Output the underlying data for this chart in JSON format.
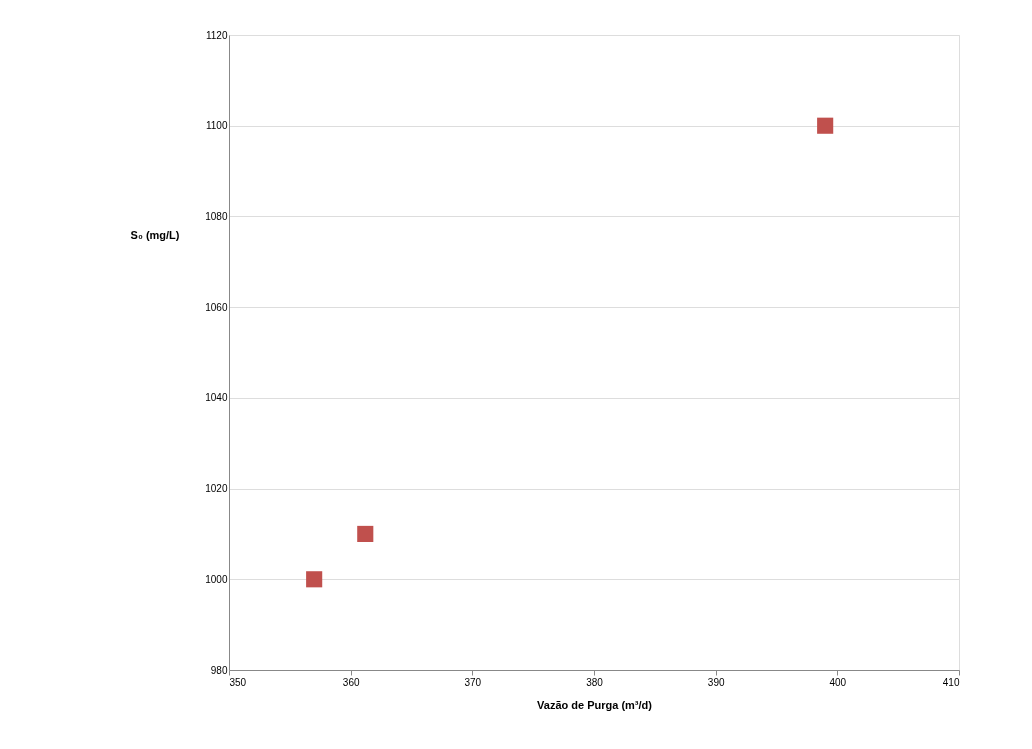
{
  "chart_data": {
    "type": "scatter",
    "xlabel": "Vazão de Purga (m³/d)",
    "ylabel": "S₀ (mg/L)",
    "x": [
      357,
      361.2,
      399
    ],
    "series": [
      {
        "color": "#c0504d",
        "values": [
          1000,
          1010,
          1100
        ]
      }
    ],
    "xlim": [
      350,
      410
    ],
    "xticks": [
      350,
      360,
      370,
      380,
      390,
      400,
      410
    ],
    "ylim": [
      980,
      1120
    ],
    "yticks": [
      980,
      1000,
      1020,
      1040,
      1060,
      1080,
      1100,
      1120
    ],
    "grid": "y",
    "marker": "square",
    "legend": false
  }
}
